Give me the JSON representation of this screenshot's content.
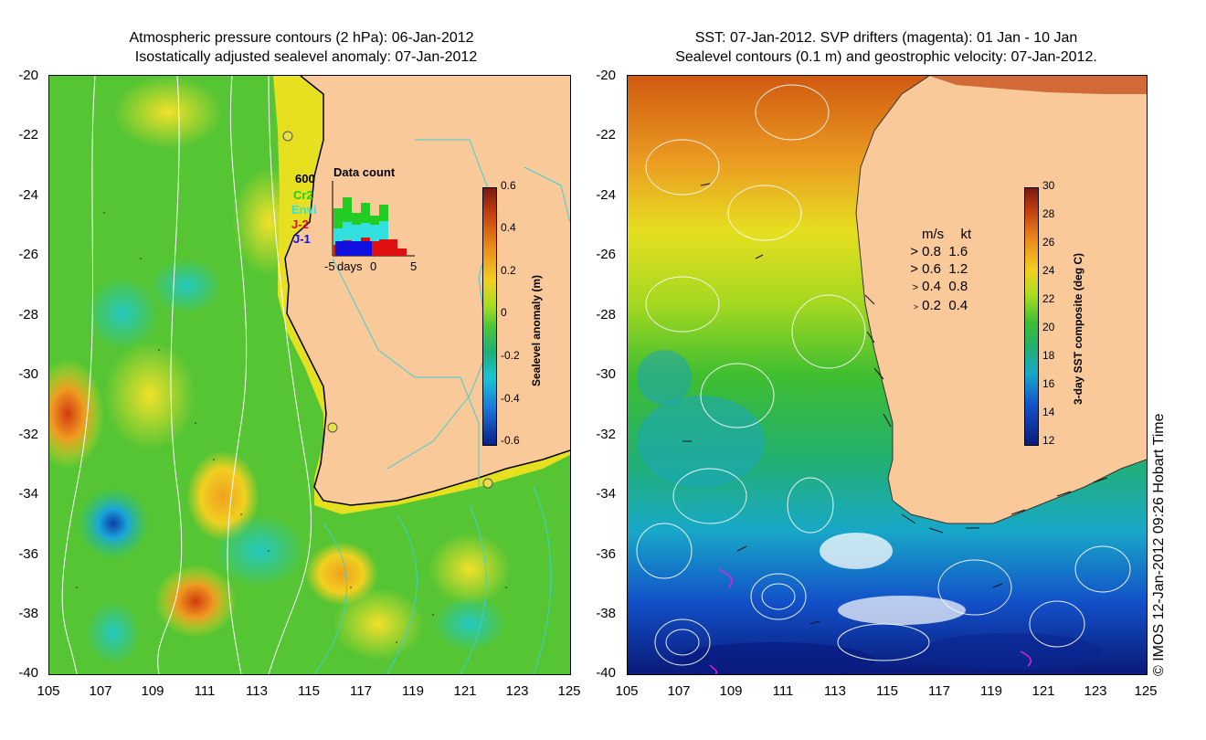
{
  "left_panel": {
    "title_line1": "Atmospheric pressure contours (2 hPa): 06-Jan-2012",
    "title_line2": "Isostatically adjusted sealevel anomaly: 07-Jan-2012",
    "colorbar": {
      "label": "Sealevel anomaly (m)",
      "ticks": [
        "0.6",
        "0.4",
        "0.2",
        "0",
        "-0.2",
        "-0.4",
        "-0.6"
      ]
    },
    "inset": {
      "title": "Data count",
      "ymax_label": "600",
      "legend": [
        {
          "name": "Cr2",
          "color": "#22cc22"
        },
        {
          "name": "Envi",
          "color": "#33e0e0"
        },
        {
          "name": "J-2",
          "color": "#e01010"
        },
        {
          "name": "J-1",
          "color": "#1010e0"
        }
      ],
      "xticks": [
        "-5",
        "days",
        "0",
        "5"
      ]
    }
  },
  "right_panel": {
    "title_line1": "SST: 07-Jan-2012. SVP drifters (magenta): 01 Jan - 10 Jan",
    "title_line2": "Sealevel contours (0.1 m) and geostrophic velocity: 07-Jan-2012.",
    "colorbar": {
      "label": "3-day SST composite (deg C)",
      "ticks": [
        "30",
        "28",
        "26",
        "24",
        "22",
        "20",
        "18",
        "16",
        "14",
        "12"
      ]
    },
    "velocity_legend": {
      "header_ms": "m/s",
      "header_kt": "kt",
      "rows": [
        {
          "ms": "0.8",
          "kt": "1.6"
        },
        {
          "ms": "0.6",
          "kt": "1.2"
        },
        {
          "ms": "0.4",
          "kt": "0.8"
        },
        {
          "ms": "0.2",
          "kt": "0.4"
        }
      ]
    }
  },
  "axes": {
    "y_ticks": [
      "-20",
      "-22",
      "-24",
      "-26",
      "-28",
      "-30",
      "-32",
      "-34",
      "-36",
      "-38",
      "-40"
    ],
    "x_ticks": [
      "105",
      "107",
      "109",
      "111",
      "113",
      "115",
      "117",
      "119",
      "121",
      "123",
      "125"
    ]
  },
  "credit": "© IMOS 12-Jan-2012 09:26 Hobart Time"
}
